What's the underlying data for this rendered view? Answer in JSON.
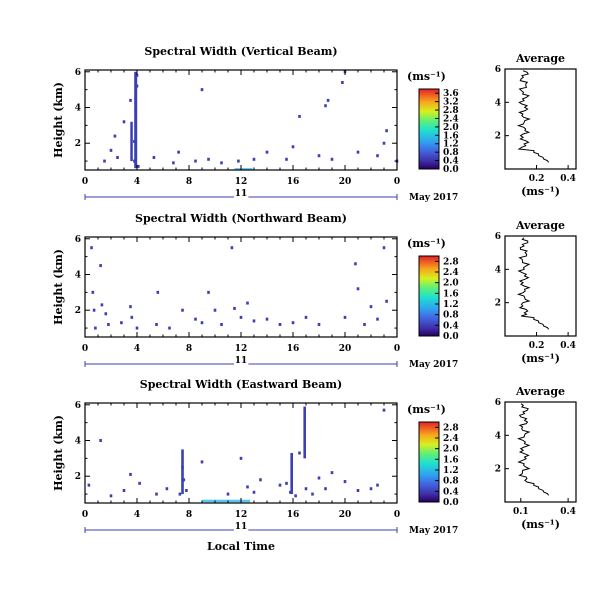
{
  "chart_data": [
    {
      "type": "heatmap",
      "title": "Spectral Width (Vertical Beam)",
      "ylabel": "Height (km)",
      "x_ticks": [
        "0",
        "4",
        "8",
        "12",
        "16",
        "20",
        "0"
      ],
      "y_ticks": [
        "2",
        "4",
        "6"
      ],
      "date_label": "11",
      "date_month": "May 2017",
      "colorbar_unit": "(ms⁻¹)",
      "colorbar_ticks": [
        "0.0",
        "0.4",
        "0.8",
        "1.2",
        "1.6",
        "2.0",
        "2.4",
        "2.8",
        "3.2",
        "3.6"
      ],
      "colorbar_range": [
        0,
        3.8
      ],
      "xlim": [
        0,
        24
      ],
      "ylim": [
        0.5,
        6.1
      ],
      "cells": [
        [
          3.8,
          2.1
        ],
        [
          3.9,
          3.0
        ],
        [
          3.9,
          3.8
        ],
        [
          3.9,
          4.5
        ],
        [
          4.0,
          5.2
        ],
        [
          4.0,
          5.8
        ],
        [
          3.8,
          1.0
        ],
        [
          4.1,
          0.7
        ],
        [
          1.5,
          1.0
        ],
        [
          2.0,
          1.6
        ],
        [
          2.3,
          2.4
        ],
        [
          2.5,
          1.2
        ],
        [
          3.0,
          3.2
        ],
        [
          3.5,
          4.4
        ],
        [
          5.3,
          1.2
        ],
        [
          6.8,
          0.9
        ],
        [
          7.2,
          1.5
        ],
        [
          8.5,
          1.0
        ],
        [
          9.0,
          5.0
        ],
        [
          9.5,
          1.1
        ],
        [
          10.5,
          0.9
        ],
        [
          11.8,
          1.0
        ],
        [
          13.0,
          1.1
        ],
        [
          14.0,
          1.5
        ],
        [
          15.5,
          1.1
        ],
        [
          16.0,
          1.8
        ],
        [
          16.5,
          3.5
        ],
        [
          18.0,
          1.3
        ],
        [
          18.5,
          4.1
        ],
        [
          18.7,
          4.4
        ],
        [
          19.0,
          1.1
        ],
        [
          19.8,
          5.4
        ],
        [
          20.0,
          6.0
        ],
        [
          21.0,
          1.5
        ],
        [
          22.5,
          1.3
        ],
        [
          23.0,
          2.0
        ],
        [
          23.2,
          2.7
        ],
        [
          24.0,
          1.0
        ]
      ],
      "avg_x_ticks": [
        "0.2",
        "0.4"
      ],
      "avg_xlim": [
        0,
        0.45
      ]
    },
    {
      "type": "heatmap",
      "title": "Spectral Width (Northward Beam)",
      "ylabel": "Height (km)",
      "x_ticks": [
        "0",
        "4",
        "8",
        "12",
        "16",
        "20",
        "0"
      ],
      "y_ticks": [
        "2",
        "4",
        "6"
      ],
      "date_label": "11",
      "date_month": "May 2017",
      "colorbar_unit": "(ms⁻¹)",
      "colorbar_ticks": [
        "0.0",
        "0.4",
        "0.8",
        "1.2",
        "1.6",
        "2.0",
        "2.4",
        "2.8"
      ],
      "colorbar_range": [
        0,
        3.0
      ],
      "xlim": [
        0,
        24
      ],
      "ylim": [
        0.5,
        6.1
      ],
      "cells": [
        [
          0.5,
          5.5
        ],
        [
          0.6,
          3.0
        ],
        [
          0.7,
          2.0
        ],
        [
          0.8,
          1.0
        ],
        [
          1.2,
          4.5
        ],
        [
          1.3,
          2.3
        ],
        [
          1.6,
          1.8
        ],
        [
          1.8,
          1.2
        ],
        [
          2.8,
          1.3
        ],
        [
          3.5,
          2.2
        ],
        [
          3.6,
          1.6
        ],
        [
          4.0,
          1.0
        ],
        [
          5.5,
          1.2
        ],
        [
          5.6,
          3.0
        ],
        [
          6.5,
          1.0
        ],
        [
          7.5,
          2.0
        ],
        [
          8.5,
          1.5
        ],
        [
          9.0,
          1.3
        ],
        [
          9.5,
          3.0
        ],
        [
          10.0,
          2.0
        ],
        [
          10.5,
          1.2
        ],
        [
          11.3,
          5.5
        ],
        [
          11.5,
          2.1
        ],
        [
          12.0,
          1.6
        ],
        [
          12.5,
          2.4
        ],
        [
          13.0,
          1.4
        ],
        [
          14.0,
          1.5
        ],
        [
          15.0,
          1.2
        ],
        [
          16.0,
          1.3
        ],
        [
          17.0,
          1.6
        ],
        [
          18.0,
          1.2
        ],
        [
          20.0,
          1.6
        ],
        [
          20.8,
          4.6
        ],
        [
          21.0,
          3.2
        ],
        [
          21.5,
          1.2
        ],
        [
          22.0,
          2.2
        ],
        [
          22.5,
          1.5
        ],
        [
          23.0,
          5.5
        ],
        [
          23.2,
          2.5
        ]
      ],
      "avg_x_ticks": [
        "0.2",
        "0.4"
      ],
      "avg_xlim": [
        0,
        0.45
      ]
    },
    {
      "type": "heatmap",
      "title": "Spectral Width (Eastward Beam)",
      "ylabel": "Height (km)",
      "x_ticks": [
        "0",
        "4",
        "8",
        "12",
        "16",
        "20",
        "0"
      ],
      "y_ticks": [
        "2",
        "4",
        "6"
      ],
      "date_label": "11",
      "date_month": "May 2017",
      "xlabel": "Local Time",
      "colorbar_unit": "(ms⁻¹)",
      "colorbar_ticks": [
        "0.0",
        "0.4",
        "0.8",
        "1.2",
        "1.6",
        "2.0",
        "2.4",
        "2.8"
      ],
      "colorbar_range": [
        0,
        3.0
      ],
      "xlim": [
        0,
        24
      ],
      "ylim": [
        0.5,
        6.1
      ],
      "cells": [
        [
          0.3,
          1.5
        ],
        [
          1.2,
          4.0
        ],
        [
          2.0,
          0.9
        ],
        [
          3.0,
          1.2
        ],
        [
          3.5,
          2.1
        ],
        [
          4.2,
          1.6
        ],
        [
          5.5,
          1.0
        ],
        [
          6.3,
          1.3
        ],
        [
          7.3,
          1.0
        ],
        [
          7.5,
          2.5
        ],
        [
          7.6,
          1.8
        ],
        [
          7.8,
          1.2
        ],
        [
          9.0,
          2.8
        ],
        [
          11.0,
          1.0
        ],
        [
          12.0,
          3.0
        ],
        [
          12.5,
          1.4
        ],
        [
          13.0,
          1.1
        ],
        [
          13.5,
          1.8
        ],
        [
          15.0,
          1.5
        ],
        [
          15.5,
          1.6
        ],
        [
          15.8,
          1.1
        ],
        [
          16.2,
          0.9
        ],
        [
          16.5,
          3.3
        ],
        [
          17.0,
          1.3
        ],
        [
          17.5,
          1.0
        ],
        [
          18.0,
          1.9
        ],
        [
          18.5,
          1.3
        ],
        [
          19.0,
          2.2
        ],
        [
          20.0,
          1.7
        ],
        [
          21.0,
          1.2
        ],
        [
          22.0,
          1.3
        ],
        [
          22.5,
          1.5
        ],
        [
          23.0,
          5.7
        ]
      ],
      "avg_x_ticks": [
        "0.1",
        "0.4"
      ],
      "avg_xlim": [
        0,
        0.45
      ]
    }
  ],
  "avg_panels": [
    {
      "title": "Average",
      "xlabel": "(ms⁻¹)",
      "y_ticks": [
        "2",
        "4",
        "6"
      ]
    },
    {
      "title": "Average",
      "xlabel": "(ms⁻¹)",
      "y_ticks": [
        "2",
        "4",
        "6"
      ]
    },
    {
      "title": "Average",
      "xlabel": "(ms⁻¹)",
      "y_ticks": [
        "2",
        "4",
        "6"
      ]
    }
  ]
}
